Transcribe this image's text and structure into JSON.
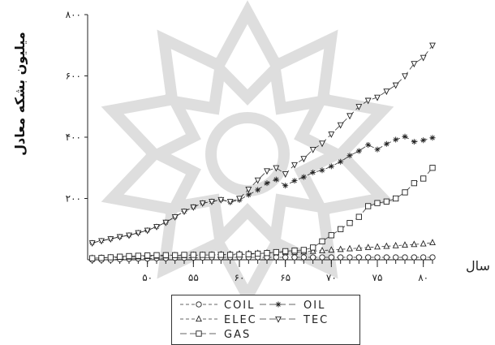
{
  "chart_data": {
    "type": "line",
    "ylabel": "میلیون بشکه معادل",
    "xlabel": "سال",
    "ylim": [
      0,
      800
    ],
    "xlim": [
      43.5,
      81
    ],
    "y_ticks": [
      {
        "value": 200,
        "label": "۲۰۰"
      },
      {
        "value": 400,
        "label": "۴۰۰"
      },
      {
        "value": 600,
        "label": "۶۰۰"
      },
      {
        "value": 800,
        "label": "۸۰۰"
      }
    ],
    "x_ticks": [
      {
        "value": 50,
        "label": "۵۰"
      },
      {
        "value": 55,
        "label": "۵۵"
      },
      {
        "value": 60,
        "label": "۶۰"
      },
      {
        "value": 65,
        "label": "۶۵"
      },
      {
        "value": 70,
        "label": "۷۰"
      },
      {
        "value": 75,
        "label": "۷۵"
      },
      {
        "value": 80,
        "label": "۸۰"
      }
    ],
    "x": [
      44,
      45,
      46,
      47,
      48,
      49,
      50,
      51,
      52,
      53,
      54,
      55,
      56,
      57,
      58,
      59,
      60,
      61,
      62,
      63,
      64,
      65,
      66,
      67,
      68,
      69,
      70,
      71,
      72,
      73,
      74,
      75,
      76,
      77,
      78,
      79,
      80,
      81
    ],
    "series": [
      {
        "name": "COIL",
        "marker": "circle",
        "dash": "4,3",
        "values": [
          0,
          0,
          0,
          2,
          3,
          4,
          4,
          5,
          5,
          6,
          6,
          7,
          7,
          8,
          8,
          8,
          8,
          8,
          8,
          8,
          8,
          8,
          8,
          8,
          8,
          8,
          8,
          8,
          8,
          8,
          8,
          8,
          8,
          8,
          8,
          8,
          8,
          8
        ]
      },
      {
        "name": "OIL",
        "marker": "asterisk",
        "dash": "8,4",
        "values": [
          55,
          62,
          68,
          75,
          80,
          88,
          96,
          108,
          122,
          140,
          158,
          172,
          185,
          190,
          196,
          188,
          195,
          212,
          228,
          250,
          262,
          242,
          258,
          270,
          285,
          292,
          305,
          320,
          340,
          355,
          375,
          360,
          378,
          392,
          402,
          385,
          390,
          398
        ]
      },
      {
        "name": "ELEC",
        "marker": "triangle",
        "dash": "4,3",
        "values": [
          5,
          6,
          7,
          8,
          9,
          10,
          11,
          12,
          13,
          14,
          14,
          15,
          15,
          16,
          17,
          18,
          19,
          20,
          21,
          22,
          23,
          24,
          25,
          26,
          28,
          30,
          32,
          34,
          36,
          38,
          40,
          42,
          44,
          46,
          48,
          50,
          52,
          56
        ]
      },
      {
        "name": "TEC",
        "marker": "triangle-down",
        "dash": "8,4",
        "values": [
          55,
          62,
          68,
          75,
          80,
          88,
          96,
          108,
          122,
          140,
          158,
          172,
          185,
          190,
          196,
          190,
          200,
          230,
          260,
          290,
          300,
          280,
          310,
          330,
          360,
          380,
          410,
          440,
          470,
          500,
          520,
          530,
          550,
          570,
          600,
          640,
          660,
          700
        ]
      },
      {
        "name": "GAS",
        "marker": "square",
        "dash": "8,4",
        "values": [
          5,
          6,
          8,
          10,
          12,
          13,
          14,
          15,
          15,
          15,
          16,
          16,
          16,
          16,
          16,
          16,
          17,
          18,
          20,
          22,
          25,
          28,
          30,
          32,
          40,
          60,
          80,
          100,
          120,
          140,
          175,
          185,
          190,
          200,
          220,
          250,
          265,
          300
        ]
      }
    ]
  }
}
